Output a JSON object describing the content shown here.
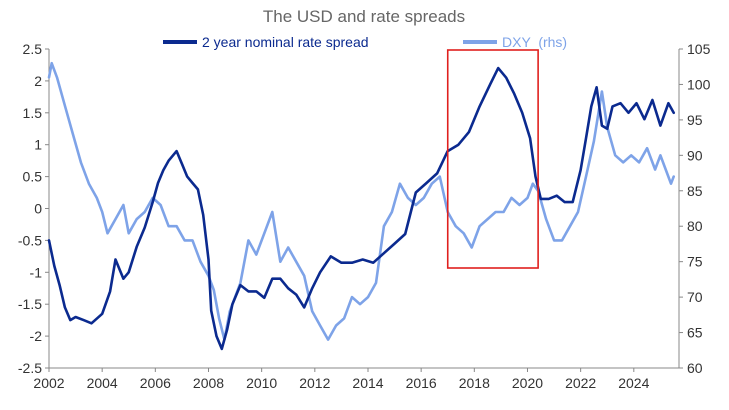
{
  "chart_data": {
    "type": "line",
    "title": "The USD and rate spreads",
    "xlabel": "",
    "ylabel": "",
    "legend_position": "top",
    "grid": false,
    "x_ticks": [
      "2002",
      "2004",
      "2006",
      "2008",
      "2010",
      "2012",
      "2014",
      "2016",
      "2018",
      "2020",
      "2022",
      "2024"
    ],
    "xlim": [
      2002,
      2025.7
    ],
    "ylim_left": [
      -2.5,
      2.5
    ],
    "y_ticks_left": [
      "2.5",
      "2",
      "1.5",
      "1",
      "0.5",
      "0",
      "-0.5",
      "-1",
      "-1.5",
      "-2",
      "-2.5"
    ],
    "ylim_right": [
      60,
      105
    ],
    "y_ticks_right": [
      "105",
      "100",
      "95",
      "90",
      "85",
      "80",
      "75",
      "70",
      "65",
      "60"
    ],
    "highlight_box": {
      "x_range": [
        2017.0,
        2020.4
      ],
      "color": "#e0201e"
    },
    "series": [
      {
        "name": "2 year nominal rate spread",
        "axis": "left",
        "color": "#0b2a8f",
        "x": [
          2002.0,
          2002.2,
          2002.4,
          2002.6,
          2002.8,
          2003.0,
          2003.3,
          2003.6,
          2004.0,
          2004.3,
          2004.5,
          2004.8,
          2005.0,
          2005.3,
          2005.6,
          2005.9,
          2006.1,
          2006.3,
          2006.5,
          2006.8,
          2007.0,
          2007.2,
          2007.4,
          2007.6,
          2007.8,
          2008.0,
          2008.1,
          2008.3,
          2008.5,
          2008.7,
          2008.9,
          2009.2,
          2009.5,
          2009.8,
          2010.1,
          2010.4,
          2010.7,
          2011.0,
          2011.3,
          2011.6,
          2011.9,
          2012.2,
          2012.6,
          2013.0,
          2013.4,
          2013.8,
          2014.2,
          2014.6,
          2015.0,
          2015.4,
          2015.8,
          2016.2,
          2016.6,
          2017.0,
          2017.4,
          2017.8,
          2018.2,
          2018.6,
          2018.9,
          2019.2,
          2019.5,
          2019.8,
          2020.1,
          2020.3,
          2020.5,
          2020.8,
          2021.1,
          2021.4,
          2021.7,
          2022.0,
          2022.2,
          2022.4,
          2022.6,
          2022.8,
          2023.0,
          2023.2,
          2023.5,
          2023.8,
          2024.1,
          2024.4,
          2024.7,
          2025.0,
          2025.3,
          2025.5
        ],
        "values": [
          -0.5,
          -0.9,
          -1.2,
          -1.55,
          -1.75,
          -1.7,
          -1.75,
          -1.8,
          -1.65,
          -1.3,
          -0.8,
          -1.1,
          -1.0,
          -0.6,
          -0.3,
          0.1,
          0.4,
          0.6,
          0.75,
          0.9,
          0.7,
          0.5,
          0.4,
          0.3,
          -0.1,
          -0.8,
          -1.6,
          -2.0,
          -2.2,
          -1.9,
          -1.5,
          -1.2,
          -1.3,
          -1.3,
          -1.4,
          -1.1,
          -1.1,
          -1.25,
          -1.35,
          -1.55,
          -1.25,
          -1.0,
          -0.75,
          -0.85,
          -0.85,
          -0.8,
          -0.85,
          -0.7,
          -0.55,
          -0.4,
          0.25,
          0.4,
          0.55,
          0.9,
          1.0,
          1.2,
          1.6,
          1.95,
          2.2,
          2.05,
          1.8,
          1.5,
          1.1,
          0.5,
          0.15,
          0.15,
          0.2,
          0.1,
          0.1,
          0.6,
          1.1,
          1.6,
          1.9,
          1.3,
          1.25,
          1.6,
          1.65,
          1.5,
          1.65,
          1.4,
          1.7,
          1.3,
          1.65,
          1.5
        ]
      },
      {
        "name": "DXY  (rhs)",
        "axis": "right",
        "color": "#7ea3e8",
        "x": [
          2002.0,
          2002.1,
          2002.3,
          2002.6,
          2002.9,
          2003.2,
          2003.5,
          2003.8,
          2004.0,
          2004.2,
          2004.5,
          2004.8,
          2005.0,
          2005.3,
          2005.6,
          2005.9,
          2006.2,
          2006.5,
          2006.8,
          2007.1,
          2007.4,
          2007.7,
          2008.0,
          2008.2,
          2008.4,
          2008.6,
          2008.8,
          2009.0,
          2009.2,
          2009.5,
          2009.8,
          2010.1,
          2010.4,
          2010.7,
          2011.0,
          2011.3,
          2011.6,
          2011.9,
          2012.2,
          2012.5,
          2012.8,
          2013.1,
          2013.4,
          2013.7,
          2014.0,
          2014.3,
          2014.6,
          2014.9,
          2015.2,
          2015.5,
          2015.8,
          2016.1,
          2016.4,
          2016.7,
          2017.0,
          2017.3,
          2017.6,
          2017.9,
          2018.2,
          2018.5,
          2018.8,
          2019.1,
          2019.4,
          2019.7,
          2020.0,
          2020.2,
          2020.4,
          2020.7,
          2021.0,
          2021.3,
          2021.6,
          2021.9,
          2022.2,
          2022.5,
          2022.8,
          2023.0,
          2023.3,
          2023.6,
          2023.9,
          2024.2,
          2024.5,
          2024.8,
          2025.0,
          2025.2,
          2025.4,
          2025.5
        ],
        "values": [
          101,
          103,
          101,
          97,
          93,
          89,
          86,
          84,
          82,
          79,
          81,
          83,
          79,
          81,
          82,
          84,
          83,
          80,
          80,
          78,
          78,
          75,
          73,
          71,
          67,
          64,
          68,
          70,
          72,
          78,
          76,
          79,
          82,
          75,
          77,
          75,
          73,
          68,
          66,
          64,
          66,
          67,
          70,
          69,
          70,
          72,
          80,
          82,
          86,
          84,
          83,
          84,
          86,
          87,
          82,
          80,
          79,
          77,
          80,
          81,
          82,
          82,
          84,
          83,
          84,
          86,
          85,
          81,
          78,
          78,
          80,
          82,
          87,
          92,
          99,
          94,
          90,
          89,
          90,
          89,
          91,
          88,
          90,
          88,
          86,
          87
        ]
      }
    ]
  }
}
